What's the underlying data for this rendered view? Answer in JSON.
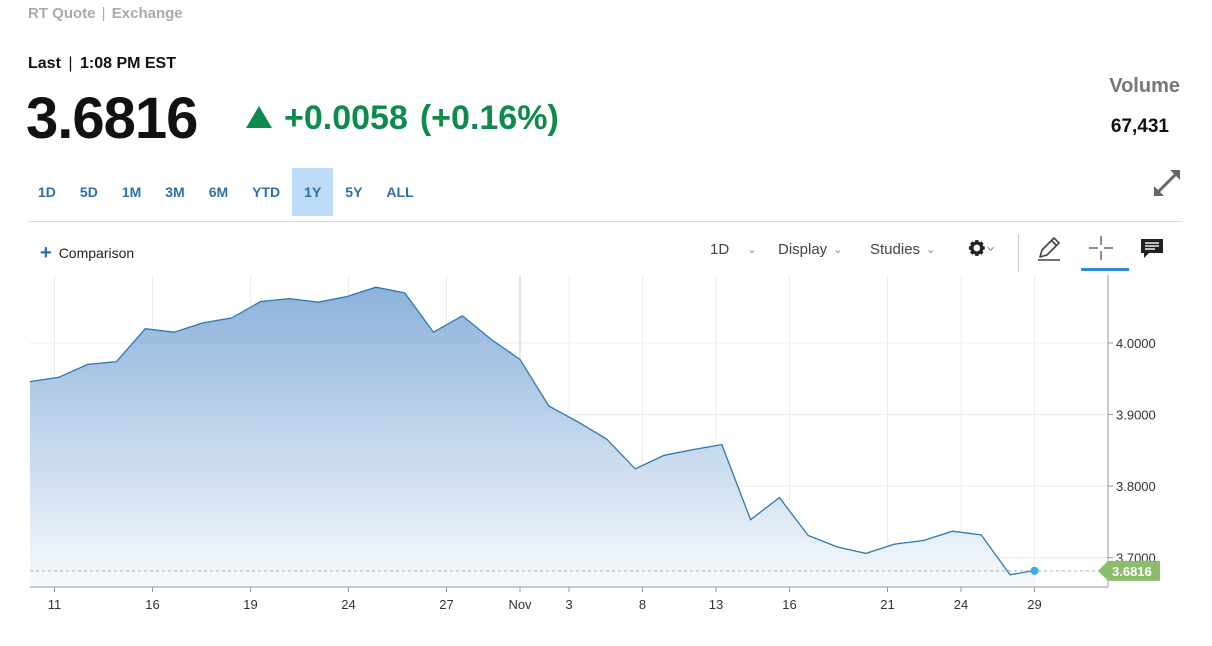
{
  "header": {
    "rt_quote": "RT Quote",
    "exchange": "Exchange",
    "separator": "|"
  },
  "quote": {
    "last_label": "Last",
    "time": "1:08 PM EST",
    "price": "3.6816",
    "change": "+0.0058",
    "change_pct": "(+0.16%)",
    "direction": "up",
    "up_color": "#0f8a4d"
  },
  "volume": {
    "label": "Volume",
    "value": "67,431"
  },
  "ranges": {
    "items": [
      "1D",
      "5D",
      "1M",
      "3M",
      "6M",
      "YTD",
      "1Y",
      "5Y",
      "ALL"
    ],
    "active": "1Y"
  },
  "toolbar": {
    "comparison_label": "Comparison",
    "interval_label": "1D",
    "display_label": "Display",
    "studies_label": "Studies",
    "settings_icon": "gear-icon",
    "draw_icon": "pencil-icon",
    "crosshair_icon": "crosshair-icon",
    "comment_icon": "comment-icon",
    "expand_icon": "expand-icon"
  },
  "chart_data": {
    "type": "area",
    "series": [
      {
        "values": [
          3.946,
          3.952,
          3.97,
          3.974,
          4.02,
          4.015,
          4.028,
          4.035,
          4.058,
          4.062,
          4.057,
          4.065,
          4.078,
          4.07,
          4.015,
          4.038,
          4.005,
          3.977,
          3.912,
          3.89,
          3.866,
          3.824,
          3.843,
          3.851,
          3.858,
          3.753,
          3.784,
          3.731,
          3.715,
          3.706,
          3.719,
          3.724,
          3.737,
          3.732,
          3.676,
          3.682
        ]
      }
    ],
    "x_tick_labels": [
      "11",
      "16",
      "19",
      "24",
      "27",
      "Nov",
      "3",
      "8",
      "13",
      "16",
      "21",
      "24",
      "29"
    ],
    "x_tick_indices": [
      1,
      5,
      9,
      13,
      17,
      20,
      22,
      25,
      28,
      31,
      35,
      38,
      41
    ],
    "y_ticks": [
      4.0,
      3.9,
      3.8,
      3.7
    ],
    "y_tick_labels": [
      "4.0000",
      "3.9000",
      "3.8000",
      "3.7000"
    ],
    "ylim": [
      3.659,
      4.095
    ],
    "last_value_label": "3.6816",
    "last_value": 3.6816,
    "line_color": "#2b79b5",
    "fill_color": "#8db2da",
    "last_badge_color": "#8cbd6b",
    "grid": true
  }
}
